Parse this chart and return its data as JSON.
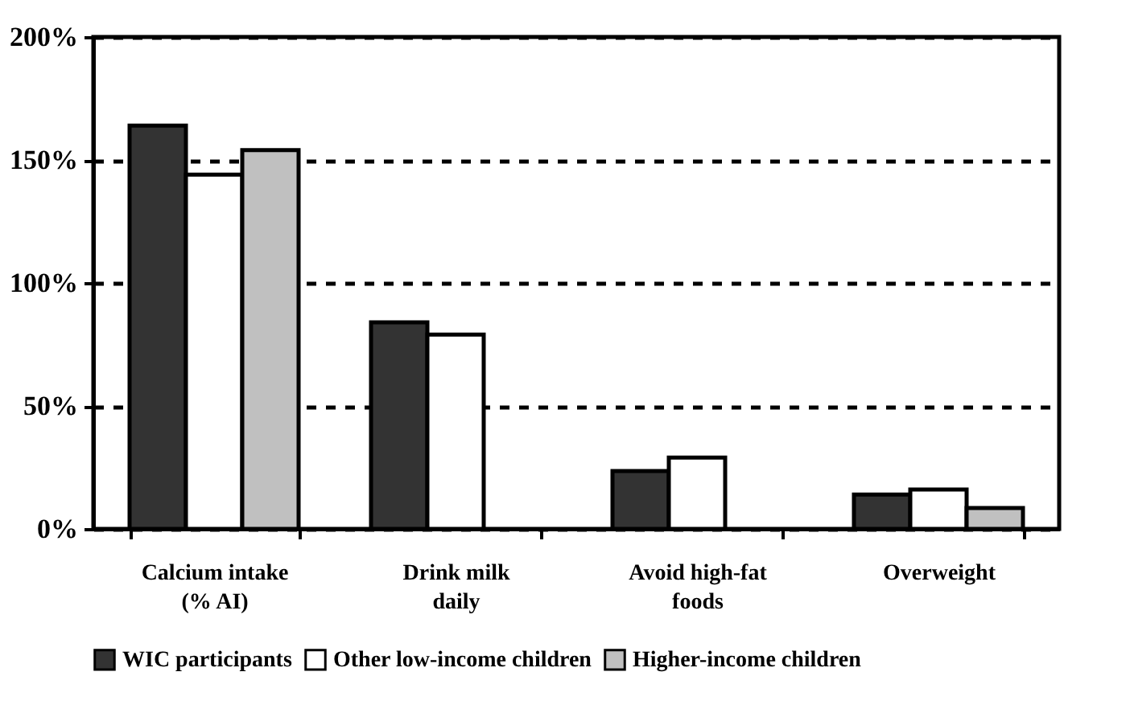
{
  "chart_data": {
    "type": "bar",
    "categories": [
      "Calcium intake\n(% AI)",
      "Drink milk\ndaily",
      "Avoid high-fat\nfoods",
      "Overweight"
    ],
    "series": [
      {
        "name": "WIC participants",
        "color": "#333333",
        "values": [
          164,
          84,
          23.5,
          14
        ]
      },
      {
        "name": "Other low-income children",
        "color": "#ffffff",
        "values": [
          144,
          79,
          29,
          16
        ]
      },
      {
        "name": "Higher-income children",
        "color": "#c0c0c0",
        "values": [
          154,
          null,
          null,
          8.5
        ]
      }
    ],
    "ylim": [
      0,
      200
    ],
    "yticks": [
      {
        "value": 0,
        "label": "0%"
      },
      {
        "value": 50,
        "label": "50%"
      },
      {
        "value": 100,
        "label": "100%"
      },
      {
        "value": 150,
        "label": "150%"
      },
      {
        "value": 200,
        "label": "200%"
      }
    ],
    "grid": "y",
    "line_style": "dashed",
    "legend": "bottom"
  }
}
